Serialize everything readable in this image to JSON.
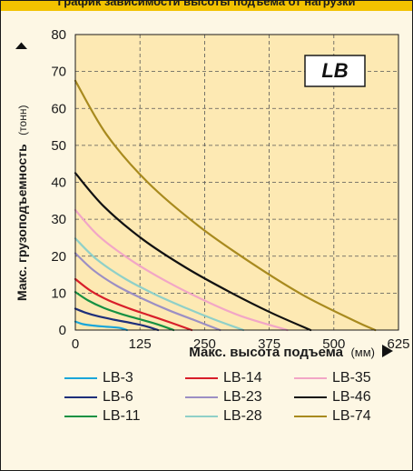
{
  "header": {
    "title": "График зависимости высоты подъема от нагрузки"
  },
  "chart_data": {
    "type": "line",
    "badge": "LB",
    "xlabel_main": "Макс. высота подъема",
    "xlabel_unit": "(мм)",
    "ylabel_main": "Макс. грузоподъемность",
    "ylabel_unit": "(тонн)",
    "xlim": [
      0,
      625
    ],
    "ylim": [
      0,
      80
    ],
    "x_ticks": [
      "0",
      "125",
      "250",
      "375",
      "500",
      "625"
    ],
    "y_ticks": [
      "0",
      "10",
      "20",
      "30",
      "40",
      "50",
      "60",
      "70",
      "80"
    ],
    "grid": true,
    "legend_position": "bottom",
    "plot_background": "#fde9b3",
    "series": [
      {
        "name": "LB-3",
        "color": "#1aa6d9",
        "points": [
          [
            0,
            2.3
          ],
          [
            15,
            1.6
          ],
          [
            35,
            1.2
          ],
          [
            60,
            0.9
          ],
          [
            85,
            0.6
          ],
          [
            100,
            0
          ]
        ]
      },
      {
        "name": "LB-6",
        "color": "#1e2f7a",
        "points": [
          [
            0,
            5.8
          ],
          [
            20,
            4.7
          ],
          [
            45,
            3.7
          ],
          [
            75,
            2.8
          ],
          [
            105,
            2.0
          ],
          [
            135,
            1.1
          ],
          [
            160,
            0
          ]
        ]
      },
      {
        "name": "LB-11",
        "color": "#169142",
        "points": [
          [
            0,
            10.3
          ],
          [
            25,
            8.0
          ],
          [
            55,
            6.0
          ],
          [
            90,
            4.3
          ],
          [
            125,
            2.9
          ],
          [
            160,
            1.5
          ],
          [
            190,
            0
          ]
        ]
      },
      {
        "name": "LB-14",
        "color": "#d81e2a",
        "points": [
          [
            0,
            13.8
          ],
          [
            30,
            10.6
          ],
          [
            65,
            8.0
          ],
          [
            105,
            5.8
          ],
          [
            145,
            3.9
          ],
          [
            185,
            2.0
          ],
          [
            225,
            0
          ]
        ]
      },
      {
        "name": "LB-23",
        "color": "#9c8fc4",
        "points": [
          [
            0,
            20.8
          ],
          [
            35,
            16.2
          ],
          [
            80,
            12.0
          ],
          [
            130,
            8.5
          ],
          [
            180,
            5.4
          ],
          [
            230,
            2.7
          ],
          [
            280,
            0
          ]
        ]
      },
      {
        "name": "LB-28",
        "color": "#8fd0c8",
        "points": [
          [
            0,
            24.8
          ],
          [
            40,
            19.3
          ],
          [
            95,
            14.0
          ],
          [
            155,
            9.6
          ],
          [
            215,
            5.9
          ],
          [
            270,
            2.8
          ],
          [
            325,
            0
          ]
        ]
      },
      {
        "name": "LB-35",
        "color": "#f2a6c6",
        "points": [
          [
            0,
            32.5
          ],
          [
            45,
            25.5
          ],
          [
            110,
            18.7
          ],
          [
            180,
            12.9
          ],
          [
            250,
            8.0
          ],
          [
            320,
            3.8
          ],
          [
            410,
            0
          ]
        ]
      },
      {
        "name": "LB-46",
        "color": "#111111",
        "points": [
          [
            0,
            42.5
          ],
          [
            55,
            33.5
          ],
          [
            130,
            24.6
          ],
          [
            215,
            16.8
          ],
          [
            300,
            10.2
          ],
          [
            380,
            4.6
          ],
          [
            455,
            0
          ]
        ]
      },
      {
        "name": "LB-74",
        "color": "#a88a1e",
        "points": [
          [
            0,
            67.5
          ],
          [
            60,
            53.0
          ],
          [
            140,
            40.0
          ],
          [
            240,
            28.0
          ],
          [
            340,
            18.2
          ],
          [
            440,
            9.5
          ],
          [
            540,
            2.5
          ],
          [
            580,
            0
          ]
        ]
      }
    ]
  }
}
